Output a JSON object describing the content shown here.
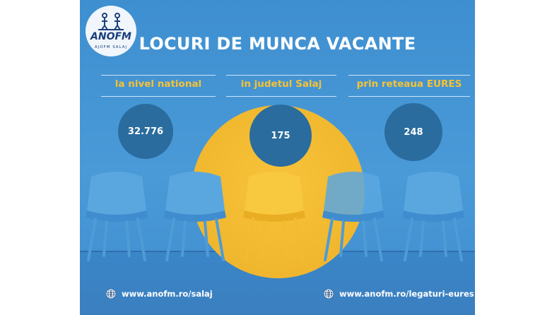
{
  "logo": {
    "name": "ANOFM",
    "subtitle": "AJOFM SALAJ"
  },
  "title": "LOCURI DE MUNCA VACANTE",
  "stats": [
    {
      "label": "la nivel national",
      "value": "32.776"
    },
    {
      "label": "in judetul Salaj",
      "value": "175"
    },
    {
      "label": "prin reteaua EURES",
      "value": "248"
    }
  ],
  "links": [
    {
      "icon": "globe-icon",
      "url": "www.anofm.ro/salaj"
    },
    {
      "icon": "globe-icon",
      "url": "www.anofm.ro/legaturi-eures"
    }
  ],
  "colors": {
    "background": "#4a9ad8",
    "accent": "#f6c233",
    "bubble": "#2a6c9e",
    "chair_blue": "#5aa7e0",
    "chair_yellow": "#f6c233"
  }
}
